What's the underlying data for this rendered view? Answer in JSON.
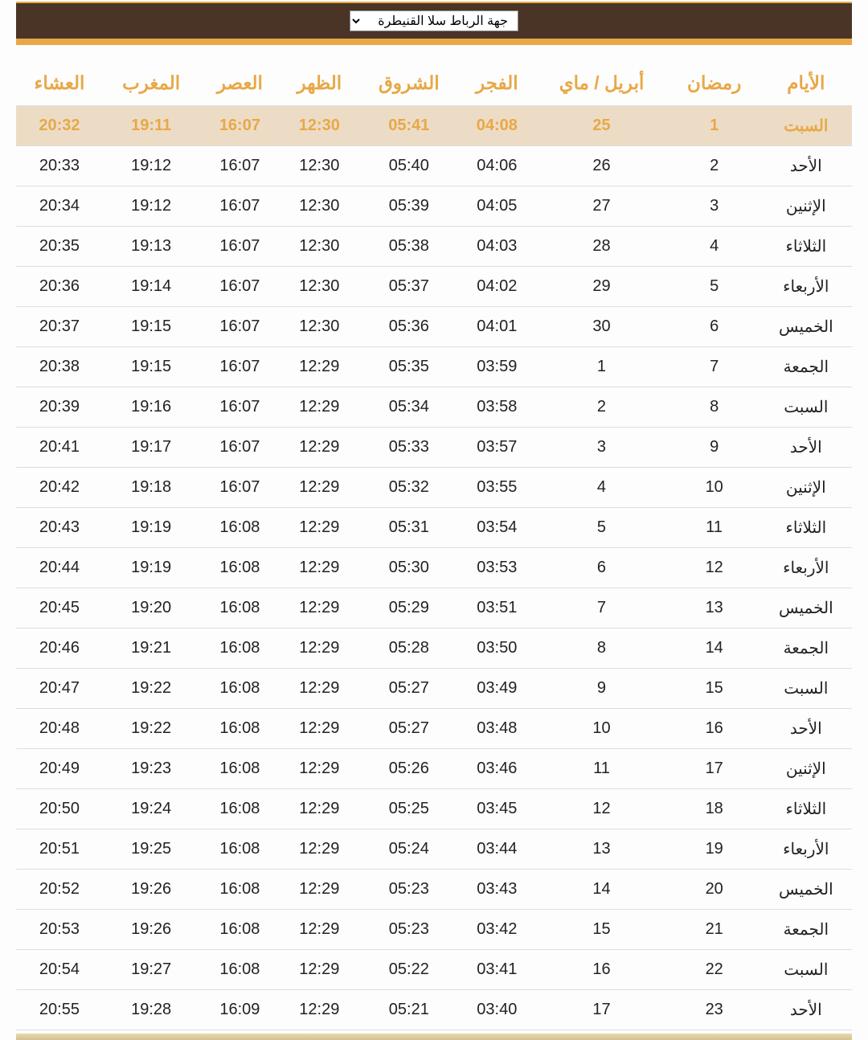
{
  "colors": {
    "header_bg": "#4a3426",
    "accent": "#e8a847",
    "highlight_bg": "#eddcc5",
    "text": "#222222",
    "border": "#dddddd",
    "page_bg": "#fdfdfd"
  },
  "region_select": {
    "selected": "جهة الرباط سلا القنيطرة"
  },
  "table": {
    "columns": [
      "الأيام",
      "رمضان",
      "أبريل / ماي",
      "الفجر",
      "الشروق",
      "الظهر",
      "العصر",
      "المغرب",
      "العشاء"
    ],
    "rows": [
      {
        "highlight": true,
        "day": "السبت",
        "ramadan": "1",
        "greg": "25",
        "fajr": "04:08",
        "shuruq": "05:41",
        "dhuhr": "12:30",
        "asr": "16:07",
        "maghrib": "19:11",
        "isha": "20:32"
      },
      {
        "highlight": false,
        "day": "الأحد",
        "ramadan": "2",
        "greg": "26",
        "fajr": "04:06",
        "shuruq": "05:40",
        "dhuhr": "12:30",
        "asr": "16:07",
        "maghrib": "19:12",
        "isha": "20:33"
      },
      {
        "highlight": false,
        "day": "الإثنين",
        "ramadan": "3",
        "greg": "27",
        "fajr": "04:05",
        "shuruq": "05:39",
        "dhuhr": "12:30",
        "asr": "16:07",
        "maghrib": "19:12",
        "isha": "20:34"
      },
      {
        "highlight": false,
        "day": "الثلاثاء",
        "ramadan": "4",
        "greg": "28",
        "fajr": "04:03",
        "shuruq": "05:38",
        "dhuhr": "12:30",
        "asr": "16:07",
        "maghrib": "19:13",
        "isha": "20:35"
      },
      {
        "highlight": false,
        "day": "الأربعاء",
        "ramadan": "5",
        "greg": "29",
        "fajr": "04:02",
        "shuruq": "05:37",
        "dhuhr": "12:30",
        "asr": "16:07",
        "maghrib": "19:14",
        "isha": "20:36"
      },
      {
        "highlight": false,
        "day": "الخميس",
        "ramadan": "6",
        "greg": "30",
        "fajr": "04:01",
        "shuruq": "05:36",
        "dhuhr": "12:30",
        "asr": "16:07",
        "maghrib": "19:15",
        "isha": "20:37"
      },
      {
        "highlight": false,
        "day": "الجمعة",
        "ramadan": "7",
        "greg": "1",
        "fajr": "03:59",
        "shuruq": "05:35",
        "dhuhr": "12:29",
        "asr": "16:07",
        "maghrib": "19:15",
        "isha": "20:38"
      },
      {
        "highlight": false,
        "day": "السبت",
        "ramadan": "8",
        "greg": "2",
        "fajr": "03:58",
        "shuruq": "05:34",
        "dhuhr": "12:29",
        "asr": "16:07",
        "maghrib": "19:16",
        "isha": "20:39"
      },
      {
        "highlight": false,
        "day": "الأحد",
        "ramadan": "9",
        "greg": "3",
        "fajr": "03:57",
        "shuruq": "05:33",
        "dhuhr": "12:29",
        "asr": "16:07",
        "maghrib": "19:17",
        "isha": "20:41"
      },
      {
        "highlight": false,
        "day": "الإثنين",
        "ramadan": "10",
        "greg": "4",
        "fajr": "03:55",
        "shuruq": "05:32",
        "dhuhr": "12:29",
        "asr": "16:07",
        "maghrib": "19:18",
        "isha": "20:42"
      },
      {
        "highlight": false,
        "day": "الثلاثاء",
        "ramadan": "11",
        "greg": "5",
        "fajr": "03:54",
        "shuruq": "05:31",
        "dhuhr": "12:29",
        "asr": "16:08",
        "maghrib": "19:19",
        "isha": "20:43"
      },
      {
        "highlight": false,
        "day": "الأربعاء",
        "ramadan": "12",
        "greg": "6",
        "fajr": "03:53",
        "shuruq": "05:30",
        "dhuhr": "12:29",
        "asr": "16:08",
        "maghrib": "19:19",
        "isha": "20:44"
      },
      {
        "highlight": false,
        "day": "الخميس",
        "ramadan": "13",
        "greg": "7",
        "fajr": "03:51",
        "shuruq": "05:29",
        "dhuhr": "12:29",
        "asr": "16:08",
        "maghrib": "19:20",
        "isha": "20:45"
      },
      {
        "highlight": false,
        "day": "الجمعة",
        "ramadan": "14",
        "greg": "8",
        "fajr": "03:50",
        "shuruq": "05:28",
        "dhuhr": "12:29",
        "asr": "16:08",
        "maghrib": "19:21",
        "isha": "20:46"
      },
      {
        "highlight": false,
        "day": "السبت",
        "ramadan": "15",
        "greg": "9",
        "fajr": "03:49",
        "shuruq": "05:27",
        "dhuhr": "12:29",
        "asr": "16:08",
        "maghrib": "19:22",
        "isha": "20:47"
      },
      {
        "highlight": false,
        "day": "الأحد",
        "ramadan": "16",
        "greg": "10",
        "fajr": "03:48",
        "shuruq": "05:27",
        "dhuhr": "12:29",
        "asr": "16:08",
        "maghrib": "19:22",
        "isha": "20:48"
      },
      {
        "highlight": false,
        "day": "الإثنين",
        "ramadan": "17",
        "greg": "11",
        "fajr": "03:46",
        "shuruq": "05:26",
        "dhuhr": "12:29",
        "asr": "16:08",
        "maghrib": "19:23",
        "isha": "20:49"
      },
      {
        "highlight": false,
        "day": "الثلاثاء",
        "ramadan": "18",
        "greg": "12",
        "fajr": "03:45",
        "shuruq": "05:25",
        "dhuhr": "12:29",
        "asr": "16:08",
        "maghrib": "19:24",
        "isha": "20:50"
      },
      {
        "highlight": false,
        "day": "الأربعاء",
        "ramadan": "19",
        "greg": "13",
        "fajr": "03:44",
        "shuruq": "05:24",
        "dhuhr": "12:29",
        "asr": "16:08",
        "maghrib": "19:25",
        "isha": "20:51"
      },
      {
        "highlight": false,
        "day": "الخميس",
        "ramadan": "20",
        "greg": "14",
        "fajr": "03:43",
        "shuruq": "05:23",
        "dhuhr": "12:29",
        "asr": "16:08",
        "maghrib": "19:26",
        "isha": "20:52"
      },
      {
        "highlight": false,
        "day": "الجمعة",
        "ramadan": "21",
        "greg": "15",
        "fajr": "03:42",
        "shuruq": "05:23",
        "dhuhr": "12:29",
        "asr": "16:08",
        "maghrib": "19:26",
        "isha": "20:53"
      },
      {
        "highlight": false,
        "day": "السبت",
        "ramadan": "22",
        "greg": "16",
        "fajr": "03:41",
        "shuruq": "05:22",
        "dhuhr": "12:29",
        "asr": "16:08",
        "maghrib": "19:27",
        "isha": "20:54"
      },
      {
        "highlight": false,
        "day": "الأحد",
        "ramadan": "23",
        "greg": "17",
        "fajr": "03:40",
        "shuruq": "05:21",
        "dhuhr": "12:29",
        "asr": "16:09",
        "maghrib": "19:28",
        "isha": "20:55"
      }
    ]
  }
}
